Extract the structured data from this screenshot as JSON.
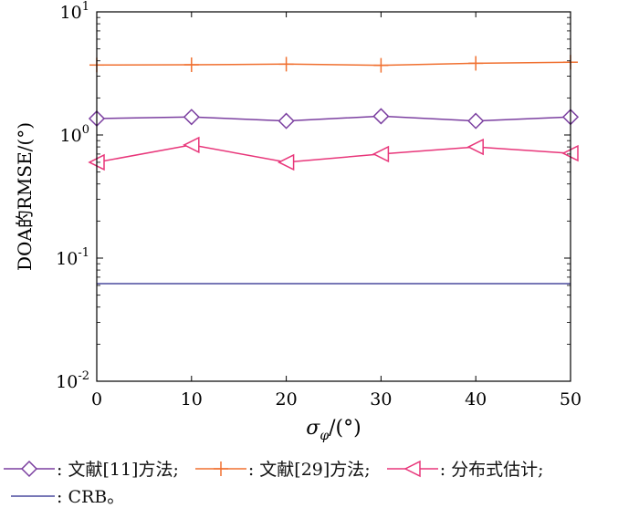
{
  "chart_data": {
    "type": "line",
    "x": [
      0,
      10,
      20,
      30,
      40,
      50
    ],
    "xlabel_symbol": "σ",
    "xlabel_sub": "φ",
    "xlabel_unit": "/(°)",
    "ylabel": "DOA的RMSE/(°)",
    "xlim": [
      0,
      50
    ],
    "ylim": [
      0.01,
      10
    ],
    "yscale": "log",
    "x_ticks": [
      0,
      10,
      20,
      30,
      40,
      50
    ],
    "y_ticks": [
      {
        "value": 0.01,
        "base": "10",
        "exp": "-2"
      },
      {
        "value": 0.1,
        "base": "10",
        "exp": "-1"
      },
      {
        "value": 1,
        "base": "10",
        "exp": "0"
      },
      {
        "value": 10,
        "base": "10",
        "exp": "1"
      }
    ],
    "grid": false,
    "series": [
      {
        "name": "文献[11]方法",
        "color": "#7b3fa0",
        "marker": "diamond",
        "values": [
          1.36,
          1.4,
          1.3,
          1.42,
          1.3,
          1.4
        ]
      },
      {
        "name": "文献[29]方法",
        "color": "#f07030",
        "marker": "plus",
        "values": [
          3.7,
          3.72,
          3.76,
          3.68,
          3.82,
          3.9
        ]
      },
      {
        "name": "分布式估计",
        "color": "#e8367a",
        "marker": "triangle-left",
        "values": [
          0.6,
          0.83,
          0.6,
          0.7,
          0.8,
          0.71
        ]
      },
      {
        "name": "CRB",
        "color": "#4a4a9e",
        "marker": "none",
        "values": [
          0.062,
          0.062,
          0.062,
          0.062,
          0.062,
          0.062
        ]
      }
    ]
  },
  "legend": {
    "items": [
      {
        "label": ": 文献[11]方法;"
      },
      {
        "label": ": 文献[29]方法;"
      },
      {
        "label": ": 分布式估计;"
      },
      {
        "label": ": CRB。"
      }
    ]
  }
}
